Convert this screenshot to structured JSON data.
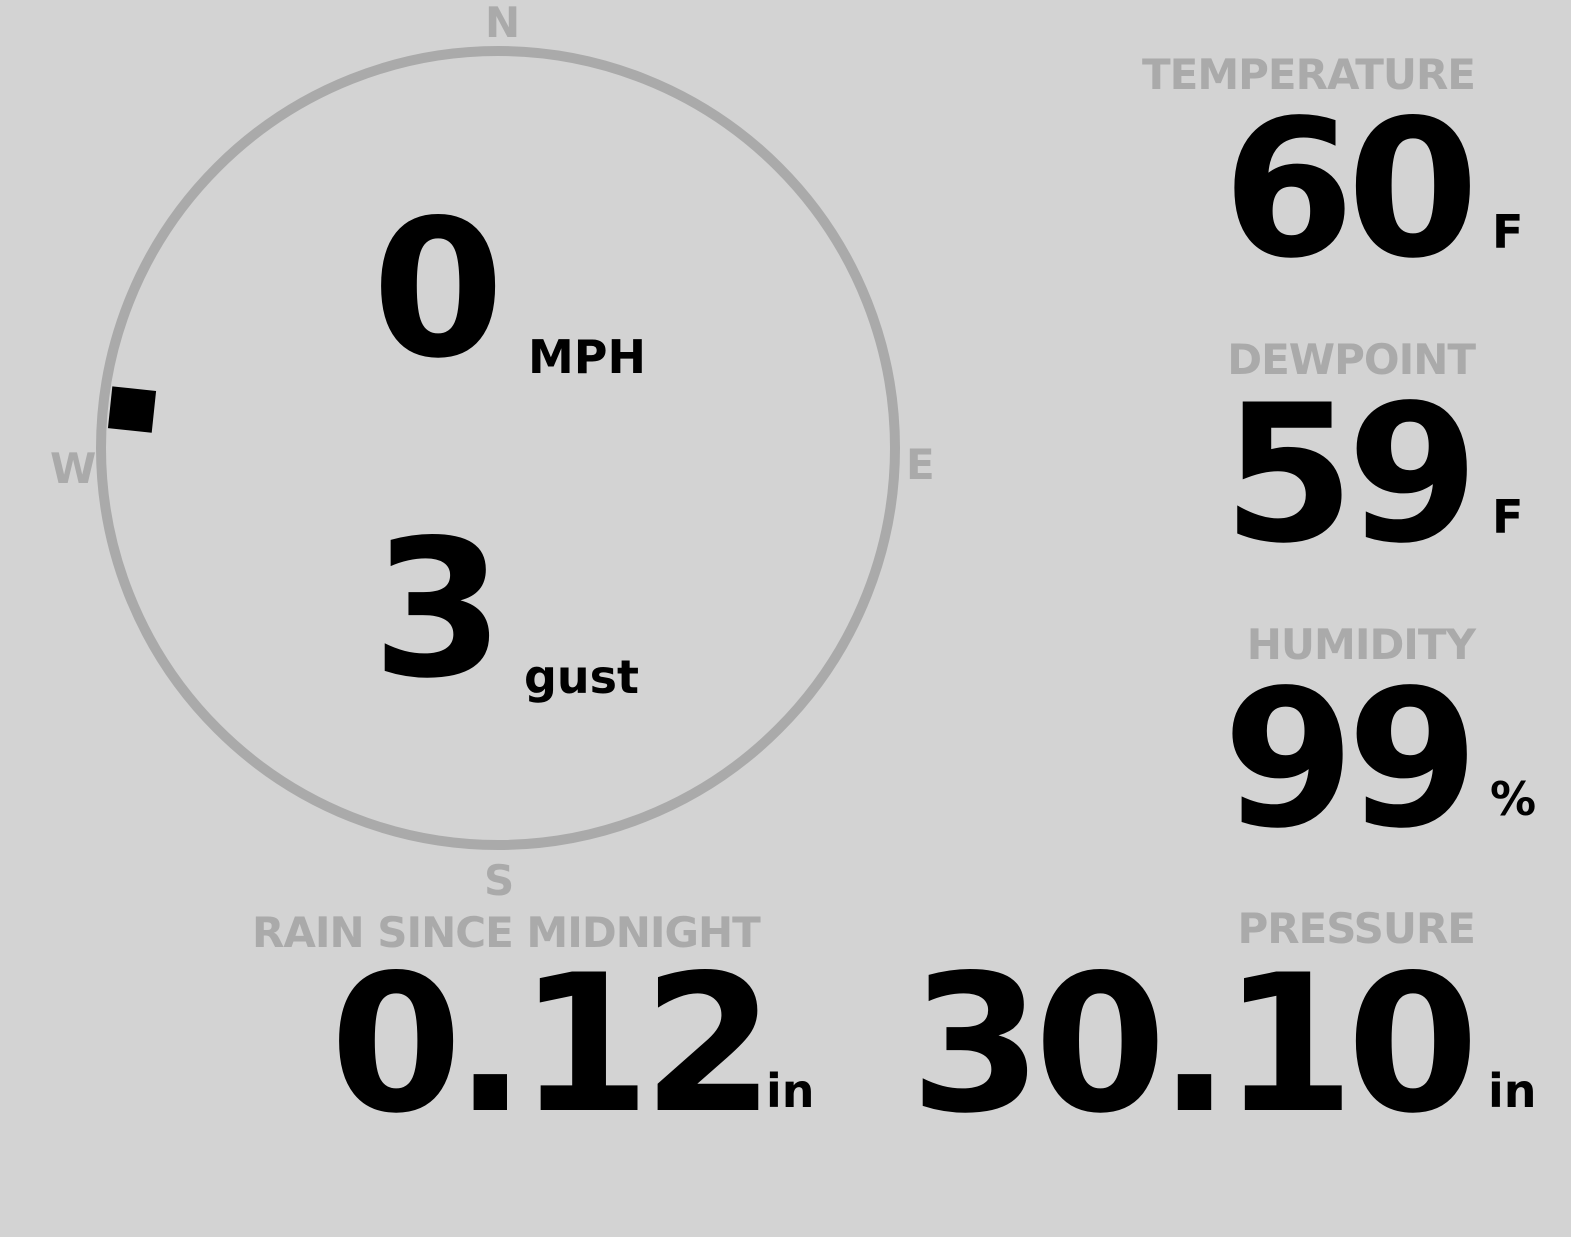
{
  "compass": {
    "n": "N",
    "e": "E",
    "s": "S",
    "w": "W",
    "wind_direction_deg": 276
  },
  "wind": {
    "speed": "0",
    "speed_unit": "MPH",
    "gust": "3",
    "gust_unit": "gust"
  },
  "temperature": {
    "label": "TEMPERATURE",
    "value": "60",
    "unit": "F"
  },
  "dewpoint": {
    "label": "DEWPOINT",
    "value": "59",
    "unit": "F"
  },
  "humidity": {
    "label": "HUMIDITY",
    "value": "99",
    "unit": "%"
  },
  "rain": {
    "label": "RAIN SINCE MIDNIGHT",
    "value": "0.12",
    "unit": "in"
  },
  "pressure": {
    "label": "PRESSURE",
    "value": "30.10",
    "unit": "in"
  },
  "colors": {
    "background": "#d3d3d3",
    "label": "#aaaaaa",
    "value": "#000000"
  }
}
